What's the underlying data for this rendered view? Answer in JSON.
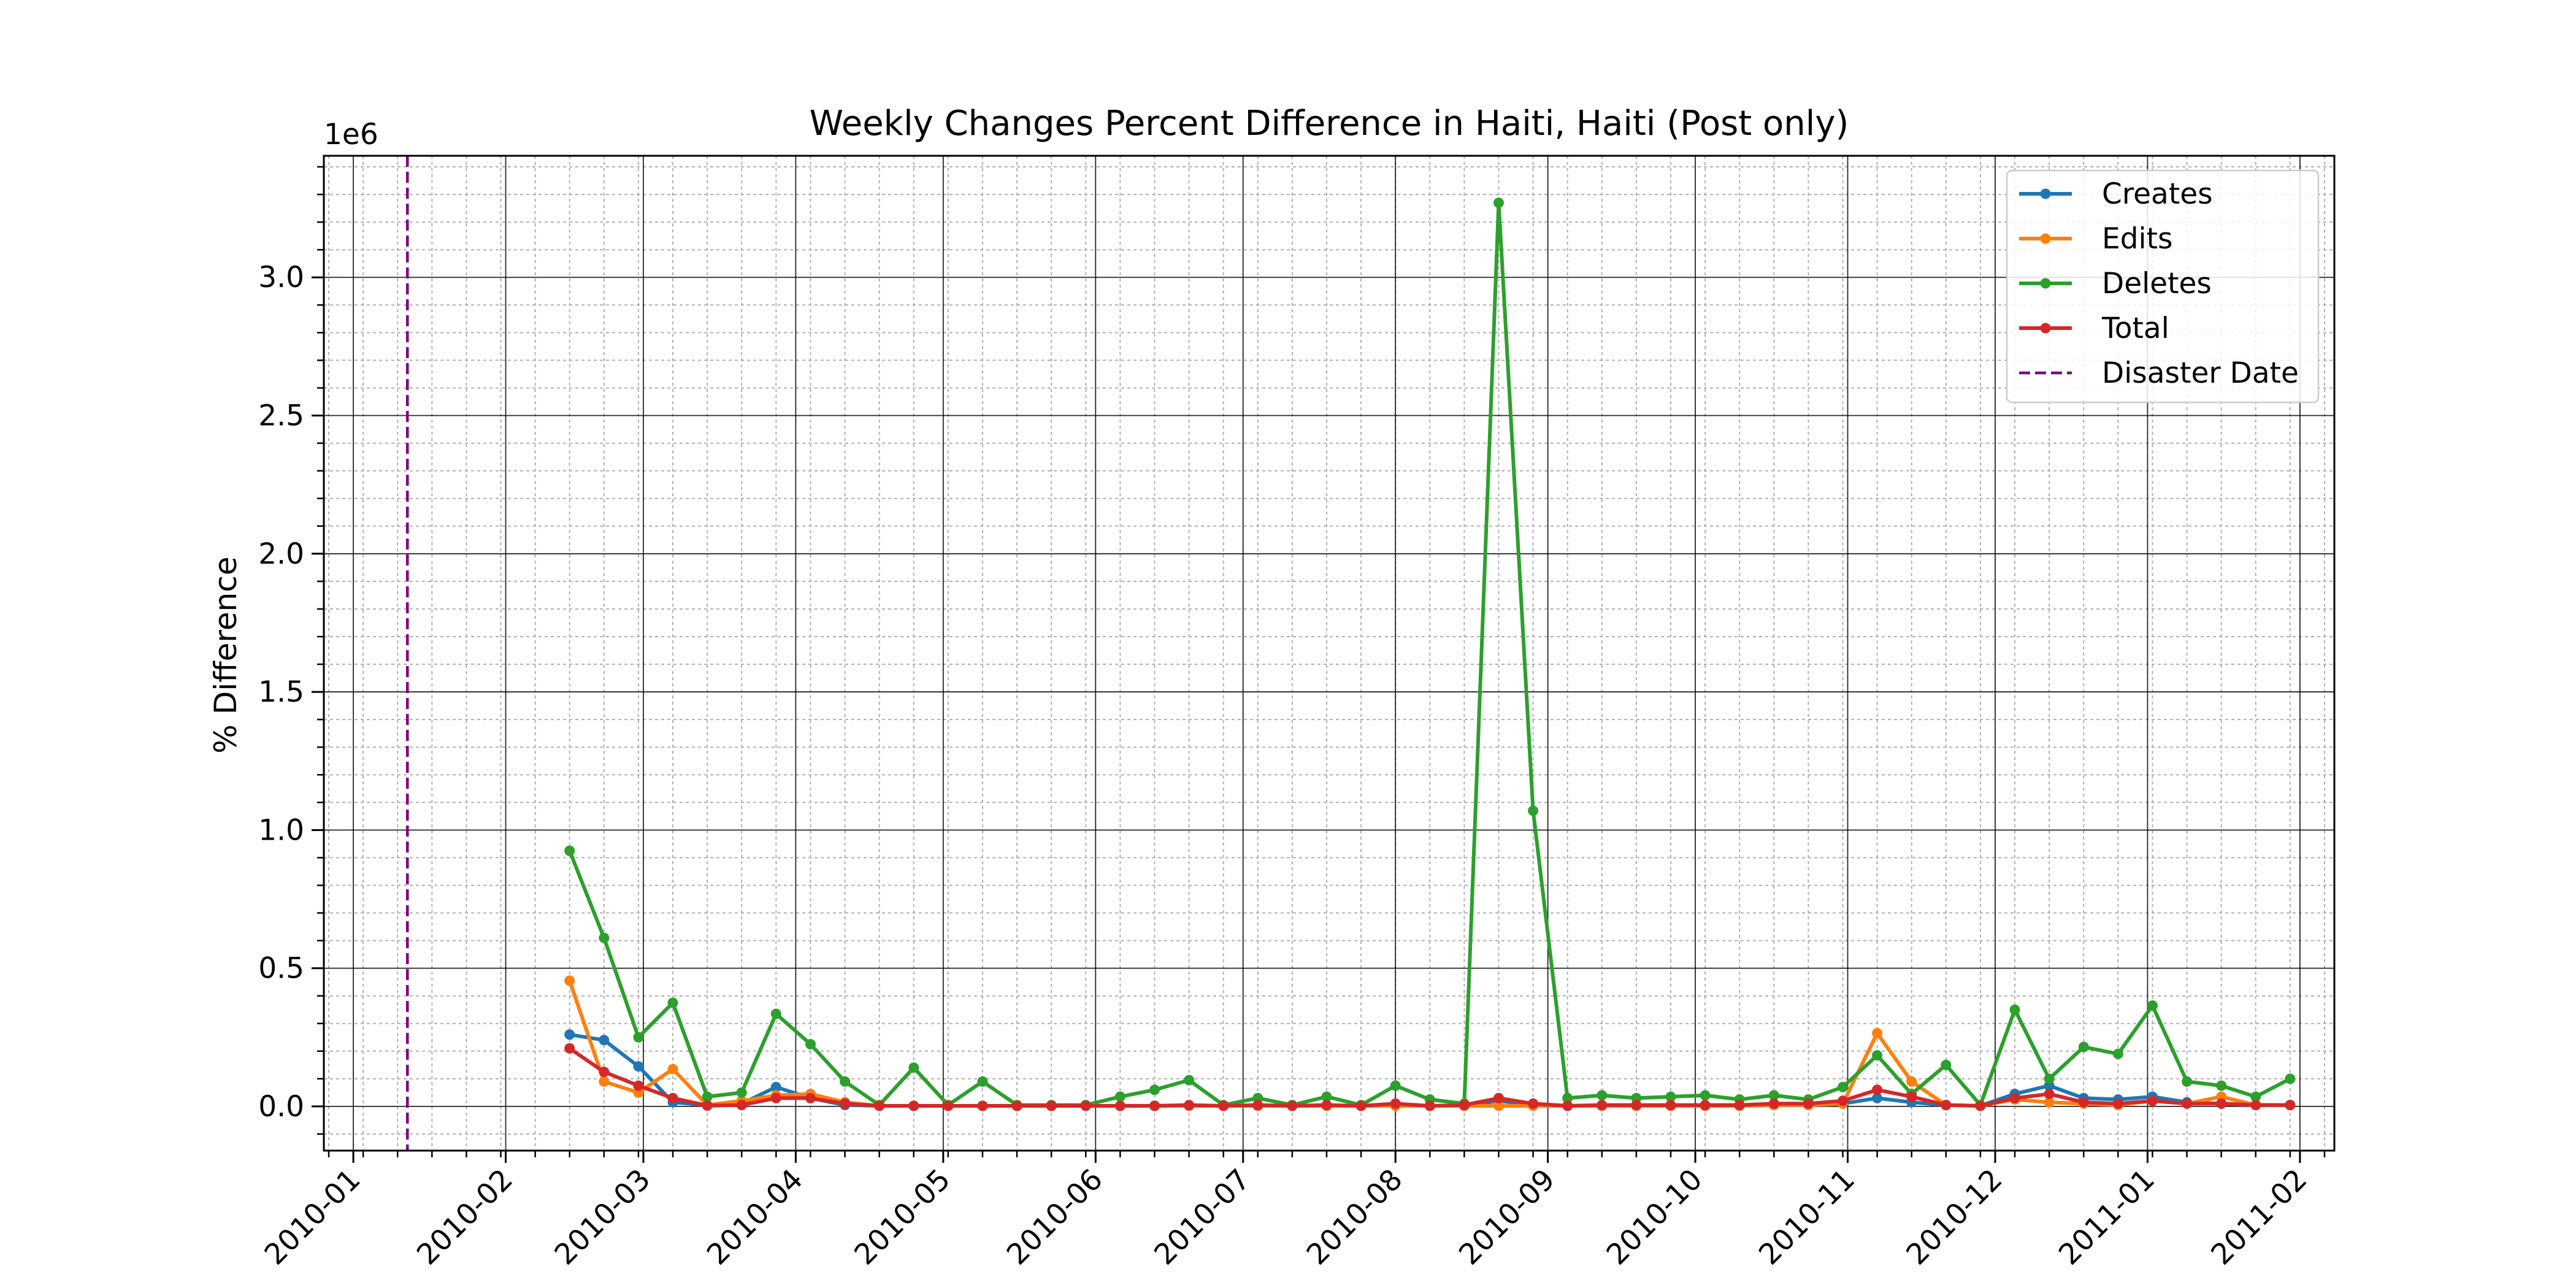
{
  "chart_data": {
    "type": "line",
    "title": "Weekly Changes Percent Difference in Haiti, Haiti (Post only)",
    "xlabel": "",
    "ylabel": "% Difference",
    "y_offset_label": "1e6",
    "y_scale_factor": 1000000,
    "xlim": [
      "2009-12-26",
      "2011-02-08"
    ],
    "ylim": [
      -160000,
      3440000
    ],
    "x_ticks": [
      "2010-01-01",
      "2010-02-01",
      "2010-03-01",
      "2010-04-01",
      "2010-05-01",
      "2010-06-01",
      "2010-07-01",
      "2010-08-01",
      "2010-09-01",
      "2010-10-01",
      "2010-11-01",
      "2010-12-01",
      "2011-01-01",
      "2011-02-01"
    ],
    "x_tick_labels": [
      "2010-01",
      "2010-02",
      "2010-03",
      "2010-04",
      "2010-05",
      "2010-06",
      "2010-07",
      "2010-08",
      "2010-09",
      "2010-10",
      "2010-11",
      "2010-12",
      "2011-01",
      "2011-02"
    ],
    "y_ticks": [
      0,
      500000,
      1000000,
      1500000,
      2000000,
      2500000,
      3000000
    ],
    "y_tick_labels": [
      "0.0",
      "0.5",
      "1.0",
      "1.5",
      "2.0",
      "2.5",
      "3.0"
    ],
    "grid": "major and minor",
    "legend_position": "top-right",
    "disaster_date": {
      "label": "Disaster Date",
      "x": "2010-01-12",
      "color": "#800080",
      "style": "dashed"
    },
    "x": [
      "2010-02-14",
      "2010-02-21",
      "2010-02-28",
      "2010-03-07",
      "2010-03-14",
      "2010-03-21",
      "2010-03-28",
      "2010-04-04",
      "2010-04-11",
      "2010-04-18",
      "2010-04-25",
      "2010-05-02",
      "2010-05-09",
      "2010-05-16",
      "2010-05-23",
      "2010-05-30",
      "2010-06-06",
      "2010-06-13",
      "2010-06-20",
      "2010-06-27",
      "2010-07-04",
      "2010-07-11",
      "2010-07-18",
      "2010-07-25",
      "2010-08-01",
      "2010-08-08",
      "2010-08-15",
      "2010-08-22",
      "2010-08-29",
      "2010-09-05",
      "2010-09-12",
      "2010-09-19",
      "2010-09-26",
      "2010-10-03",
      "2010-10-10",
      "2010-10-17",
      "2010-10-24",
      "2010-10-31",
      "2010-11-07",
      "2010-11-14",
      "2010-11-21",
      "2010-11-28",
      "2010-12-05",
      "2010-12-12",
      "2010-12-19",
      "2010-12-26",
      "2011-01-02",
      "2011-01-09",
      "2011-01-16",
      "2011-01-23",
      "2011-01-30"
    ],
    "series": [
      {
        "name": "Creates",
        "color": "#1f77b4",
        "values": [
          260000,
          240000,
          145000,
          15000,
          5000,
          10000,
          70000,
          30000,
          5000,
          2000,
          2000,
          2000,
          2000,
          2000,
          2000,
          2000,
          2000,
          2000,
          2000,
          2000,
          2000,
          2000,
          2000,
          2000,
          5000,
          2000,
          2000,
          20000,
          5000,
          2000,
          2000,
          2000,
          2000,
          2000,
          2000,
          5000,
          5000,
          10000,
          30000,
          15000,
          5000,
          2000,
          45000,
          75000,
          30000,
          25000,
          35000,
          15000,
          10000,
          5000,
          5000
        ]
      },
      {
        "name": "Edits",
        "color": "#ff7f0e",
        "values": [
          455000,
          90000,
          50000,
          135000,
          5000,
          20000,
          40000,
          45000,
          15000,
          2000,
          2000,
          2000,
          2000,
          2000,
          2000,
          2000,
          2000,
          2000,
          2000,
          2000,
          2000,
          2000,
          2000,
          2000,
          2000,
          2000,
          2000,
          2000,
          2000,
          2000,
          2000,
          2000,
          2000,
          2000,
          2000,
          5000,
          5000,
          10000,
          265000,
          90000,
          5000,
          2000,
          25000,
          15000,
          10000,
          5000,
          20000,
          10000,
          35000,
          5000,
          5000
        ]
      },
      {
        "name": "Deletes",
        "color": "#2ca02c",
        "values": [
          925000,
          610000,
          250000,
          375000,
          35000,
          50000,
          335000,
          225000,
          90000,
          5000,
          140000,
          5000,
          90000,
          5000,
          5000,
          5000,
          35000,
          60000,
          95000,
          5000,
          30000,
          5000,
          35000,
          5000,
          75000,
          25000,
          10000,
          3270000,
          1070000,
          30000,
          40000,
          30000,
          35000,
          40000,
          25000,
          40000,
          25000,
          70000,
          185000,
          45000,
          150000,
          5000,
          350000,
          100000,
          215000,
          190000,
          365000,
          90000,
          75000,
          35000,
          100000
        ]
      },
      {
        "name": "Total",
        "color": "#d62728",
        "values": [
          210000,
          125000,
          75000,
          30000,
          3000,
          5000,
          30000,
          30000,
          10000,
          2000,
          2000,
          2000,
          2000,
          2000,
          2000,
          2000,
          2000,
          2000,
          5000,
          2000,
          5000,
          2000,
          5000,
          2000,
          10000,
          2000,
          5000,
          30000,
          10000,
          2000,
          5000,
          5000,
          5000,
          5000,
          5000,
          10000,
          10000,
          20000,
          60000,
          35000,
          5000,
          2000,
          30000,
          45000,
          15000,
          10000,
          20000,
          10000,
          10000,
          5000,
          5000
        ]
      }
    ]
  }
}
